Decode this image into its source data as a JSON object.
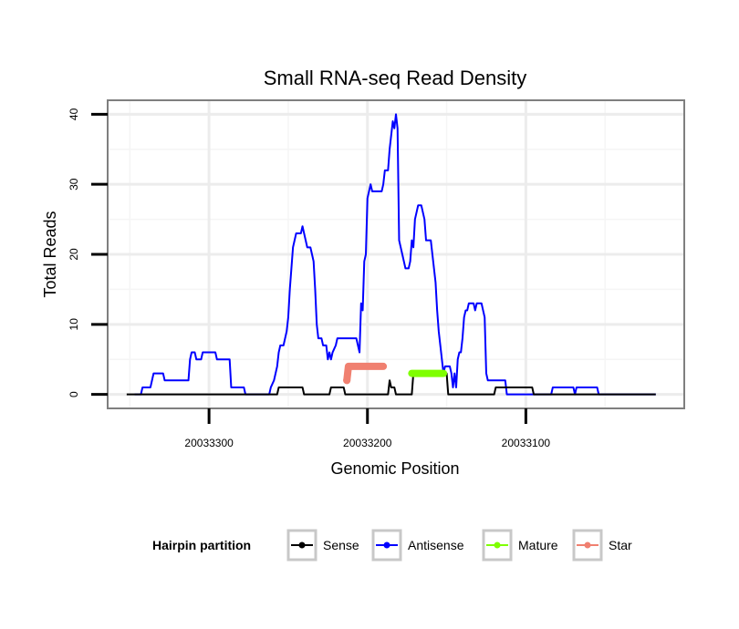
{
  "chart_data": {
    "type": "line",
    "title": "Small RNA-seq Read Density",
    "xlabel": "Genomic Position",
    "ylabel": "Total Reads",
    "x_reversed": true,
    "xlim": [
      20033364,
      20033000
    ],
    "ylim": [
      -2,
      42
    ],
    "x_ticks": [
      20033300,
      20033200,
      20033100
    ],
    "x_tick_labels": [
      "20033300",
      "20033200",
      "20033100"
    ],
    "y_ticks": [
      0,
      10,
      20,
      30,
      40
    ],
    "y_tick_labels": [
      "0",
      "10",
      "20",
      "30",
      "40"
    ],
    "grid": true,
    "legend": {
      "title": "Hairpin partition",
      "position": "bottom",
      "entries": [
        {
          "label": "Sense",
          "color": "#000000"
        },
        {
          "label": "Antisense",
          "color": "#0000ff"
        },
        {
          "label": "Mature",
          "color": "#7fff00"
        },
        {
          "label": "Star",
          "color": "#f08070"
        }
      ]
    },
    "series": [
      {
        "name": "Antisense",
        "color": "#0000ff",
        "points": [
          [
            20033347,
            0
          ],
          [
            20033343,
            0
          ],
          [
            20033342,
            1
          ],
          [
            20033337,
            1
          ],
          [
            20033336,
            2
          ],
          [
            20033335,
            3
          ],
          [
            20033329,
            3
          ],
          [
            20033328,
            2
          ],
          [
            20033313,
            2
          ],
          [
            20033312,
            5
          ],
          [
            20033311,
            6
          ],
          [
            20033309,
            6
          ],
          [
            20033308,
            5
          ],
          [
            20033305,
            5
          ],
          [
            20033304,
            6
          ],
          [
            20033296,
            6
          ],
          [
            20033295,
            5
          ],
          [
            20033287,
            5
          ],
          [
            20033286,
            1
          ],
          [
            20033278,
            1
          ],
          [
            20033277,
            0
          ],
          [
            20033262,
            0
          ],
          [
            20033261,
            1
          ],
          [
            20033259,
            2
          ],
          [
            20033257,
            4
          ],
          [
            20033256,
            6
          ],
          [
            20033255,
            7
          ],
          [
            20033253,
            7
          ],
          [
            20033251,
            9
          ],
          [
            20033250,
            11
          ],
          [
            20033249,
            15
          ],
          [
            20033248,
            18
          ],
          [
            20033247,
            21
          ],
          [
            20033246,
            22
          ],
          [
            20033245,
            23
          ],
          [
            20033242,
            23
          ],
          [
            20033241,
            24
          ],
          [
            20033240,
            23
          ],
          [
            20033239,
            22
          ],
          [
            20033238,
            21
          ],
          [
            20033236,
            21
          ],
          [
            20033235,
            20
          ],
          [
            20033234,
            19
          ],
          [
            20033233,
            15
          ],
          [
            20033232,
            10
          ],
          [
            20033231,
            8
          ],
          [
            20033229,
            8
          ],
          [
            20033228,
            7
          ],
          [
            20033226,
            7
          ],
          [
            20033225,
            5
          ],
          [
            20033224,
            6
          ],
          [
            20033223,
            5
          ],
          [
            20033222,
            6
          ],
          [
            20033220,
            7
          ],
          [
            20033219,
            8
          ],
          [
            20033207,
            8
          ],
          [
            20033206,
            7
          ],
          [
            20033205,
            6
          ],
          [
            20033204,
            13
          ],
          [
            20033203,
            12
          ],
          [
            20033202,
            19
          ],
          [
            20033201,
            20
          ],
          [
            20033200,
            28
          ],
          [
            20033199,
            29
          ],
          [
            20033198,
            30
          ],
          [
            20033197,
            29
          ],
          [
            20033191,
            29
          ],
          [
            20033190,
            30
          ],
          [
            20033189,
            32
          ],
          [
            20033187,
            32
          ],
          [
            20033186,
            35
          ],
          [
            20033185,
            37
          ],
          [
            20033184,
            39
          ],
          [
            20033183,
            38
          ],
          [
            20033182,
            40
          ],
          [
            20033181,
            38
          ],
          [
            20033180,
            22
          ],
          [
            20033179,
            21
          ],
          [
            20033178,
            20
          ],
          [
            20033177,
            19
          ],
          [
            20033176,
            18
          ],
          [
            20033174,
            18
          ],
          [
            20033173,
            19
          ],
          [
            20033172,
            22
          ],
          [
            20033171,
            21
          ],
          [
            20033170,
            25
          ],
          [
            20033169,
            26
          ],
          [
            20033168,
            27
          ],
          [
            20033166,
            27
          ],
          [
            20033165,
            26
          ],
          [
            20033164,
            25
          ],
          [
            20033163,
            22
          ],
          [
            20033160,
            22
          ],
          [
            20033159,
            20
          ],
          [
            20033158,
            18
          ],
          [
            20033157,
            16
          ],
          [
            20033156,
            12
          ],
          [
            20033155,
            9
          ],
          [
            20033154,
            7
          ],
          [
            20033153,
            5
          ],
          [
            20033152,
            3
          ],
          [
            20033151,
            4
          ],
          [
            20033148,
            4
          ],
          [
            20033147,
            3
          ],
          [
            20033146,
            1
          ],
          [
            20033145,
            3
          ],
          [
            20033144,
            1
          ],
          [
            20033143,
            5
          ],
          [
            20033142,
            6
          ],
          [
            20033141,
            6
          ],
          [
            20033140,
            8
          ],
          [
            20033139,
            11
          ],
          [
            20033138,
            12
          ],
          [
            20033137,
            12
          ],
          [
            20033136,
            13
          ],
          [
            20033133,
            13
          ],
          [
            20033132,
            12
          ],
          [
            20033131,
            13
          ],
          [
            20033128,
            13
          ],
          [
            20033127,
            12
          ],
          [
            20033126,
            11
          ],
          [
            20033125,
            3
          ],
          [
            20033124,
            2
          ],
          [
            20033113,
            2
          ],
          [
            20033112,
            0
          ],
          [
            20033084,
            0
          ],
          [
            20033083,
            1
          ],
          [
            20033070,
            1
          ],
          [
            20033069,
            0
          ],
          [
            20033068,
            1
          ],
          [
            20033055,
            1
          ],
          [
            20033054,
            0
          ],
          [
            20033018,
            0
          ]
        ]
      },
      {
        "name": "Sense",
        "color": "#000000",
        "points": [
          [
            20033352,
            0
          ],
          [
            20033257,
            0
          ],
          [
            20033256,
            1
          ],
          [
            20033241,
            1
          ],
          [
            20033240,
            0
          ],
          [
            20033224,
            0
          ],
          [
            20033223,
            1
          ],
          [
            20033215,
            1
          ],
          [
            20033214,
            0
          ],
          [
            20033187,
            0
          ],
          [
            20033186,
            2
          ],
          [
            20033185,
            1
          ],
          [
            20033183,
            1
          ],
          [
            20033182,
            0
          ],
          [
            20033172,
            0
          ],
          [
            20033171,
            3
          ],
          [
            20033150,
            3
          ],
          [
            20033149,
            0
          ],
          [
            20033120,
            0
          ],
          [
            20033119,
            1
          ],
          [
            20033096,
            1
          ],
          [
            20033095,
            0
          ],
          [
            20033018,
            0
          ]
        ]
      },
      {
        "name": "Mature",
        "color": "#7fff00",
        "points": [
          [
            20033172,
            3
          ],
          [
            20033152,
            3
          ]
        ]
      },
      {
        "name": "Star",
        "color": "#f08070",
        "points": [
          [
            20033213,
            2
          ],
          [
            20033212,
            4
          ],
          [
            20033190,
            4
          ]
        ]
      }
    ]
  }
}
